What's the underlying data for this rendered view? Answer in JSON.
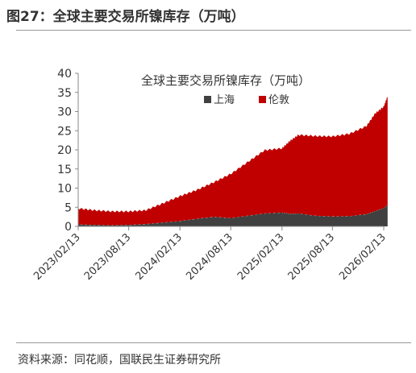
{
  "figure_title": "图27：全球主要交易所镍库存（万吨）",
  "source_note": "资料来源：同花顺，国联民生证券研究所",
  "chart_data": {
    "type": "area",
    "title": "全球主要交易所镍库存（万吨）",
    "stacked": true,
    "grid": false,
    "legend_position": "top-center",
    "ylim": [
      0,
      40
    ],
    "yticks": [
      0,
      5,
      10,
      15,
      20,
      25,
      30,
      35,
      40
    ],
    "xticks": [
      "2023/02/13",
      "2023/08/13",
      "2024/02/13",
      "2024/08/13",
      "2025/02/13",
      "2025/08/13",
      "2026/02/13"
    ],
    "x": [
      "2023/02/13",
      "2023/04/13",
      "2023/06/13",
      "2023/08/13",
      "2023/10/13",
      "2023/12/13",
      "2024/02/13",
      "2024/04/13",
      "2024/06/13",
      "2024/08/13",
      "2024/10/13",
      "2024/12/13",
      "2025/02/13",
      "2025/03/13",
      "2025/04/13",
      "2025/06/13",
      "2025/08/13",
      "2025/10/13",
      "2025/12/13",
      "2026/01/13",
      "2026/02/13",
      "2026/02/27"
    ],
    "series": [
      {
        "name": "上海",
        "color": "#404040",
        "values": [
          0.5,
          0.4,
          0.3,
          0.4,
          0.6,
          1.0,
          1.4,
          2.0,
          2.5,
          2.2,
          2.8,
          3.4,
          3.6,
          3.3,
          3.4,
          2.8,
          2.6,
          2.7,
          3.2,
          4.0,
          4.8,
          5.6
        ]
      },
      {
        "name": "伦敦",
        "color": "#c00000",
        "values": [
          4.2,
          3.8,
          3.6,
          3.5,
          3.6,
          5.0,
          6.5,
          7.5,
          9.0,
          11.5,
          14.0,
          16.5,
          16.8,
          19.0,
          20.5,
          20.8,
          20.9,
          21.5,
          23.0,
          25.5,
          26.5,
          28.5
        ]
      }
    ]
  }
}
